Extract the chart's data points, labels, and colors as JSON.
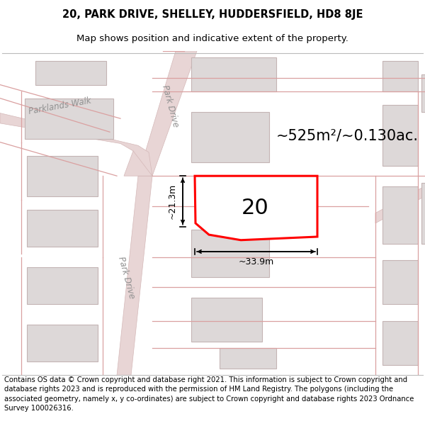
{
  "title_line1": "20, PARK DRIVE, SHELLEY, HUDDERSFIELD, HD8 8JE",
  "title_line2": "Map shows position and indicative extent of the property.",
  "footer_text": "Contains OS data © Crown copyright and database right 2021. This information is subject to Crown copyright and database rights 2023 and is reproduced with the permission of HM Land Registry. The polygons (including the associated geometry, namely x, y co-ordinates) are subject to Crown copyright and database rights 2023 Ordnance Survey 100026316.",
  "area_label": "~525m²/~0.130ac.",
  "number_label": "20",
  "width_label": "~33.9m",
  "height_label": "~21.3m",
  "street_label_upper": "Park Drive",
  "street_label_walk": "Parklands Walk",
  "street_label_lower": "Park Drive",
  "map_bg": "#f2eeee",
  "road_color": "#e8d5d5",
  "road_edge_color": "#d4b8b8",
  "building_color": "#ddd8d8",
  "building_edge_color": "#c4b4b4",
  "highlight_color": "#ff0000",
  "title_fontsize": 10.5,
  "subtitle_fontsize": 9.5,
  "footer_fontsize": 7.2,
  "area_fontsize": 15,
  "number_fontsize": 22,
  "street_fontsize": 8.5,
  "dim_fontsize": 9
}
